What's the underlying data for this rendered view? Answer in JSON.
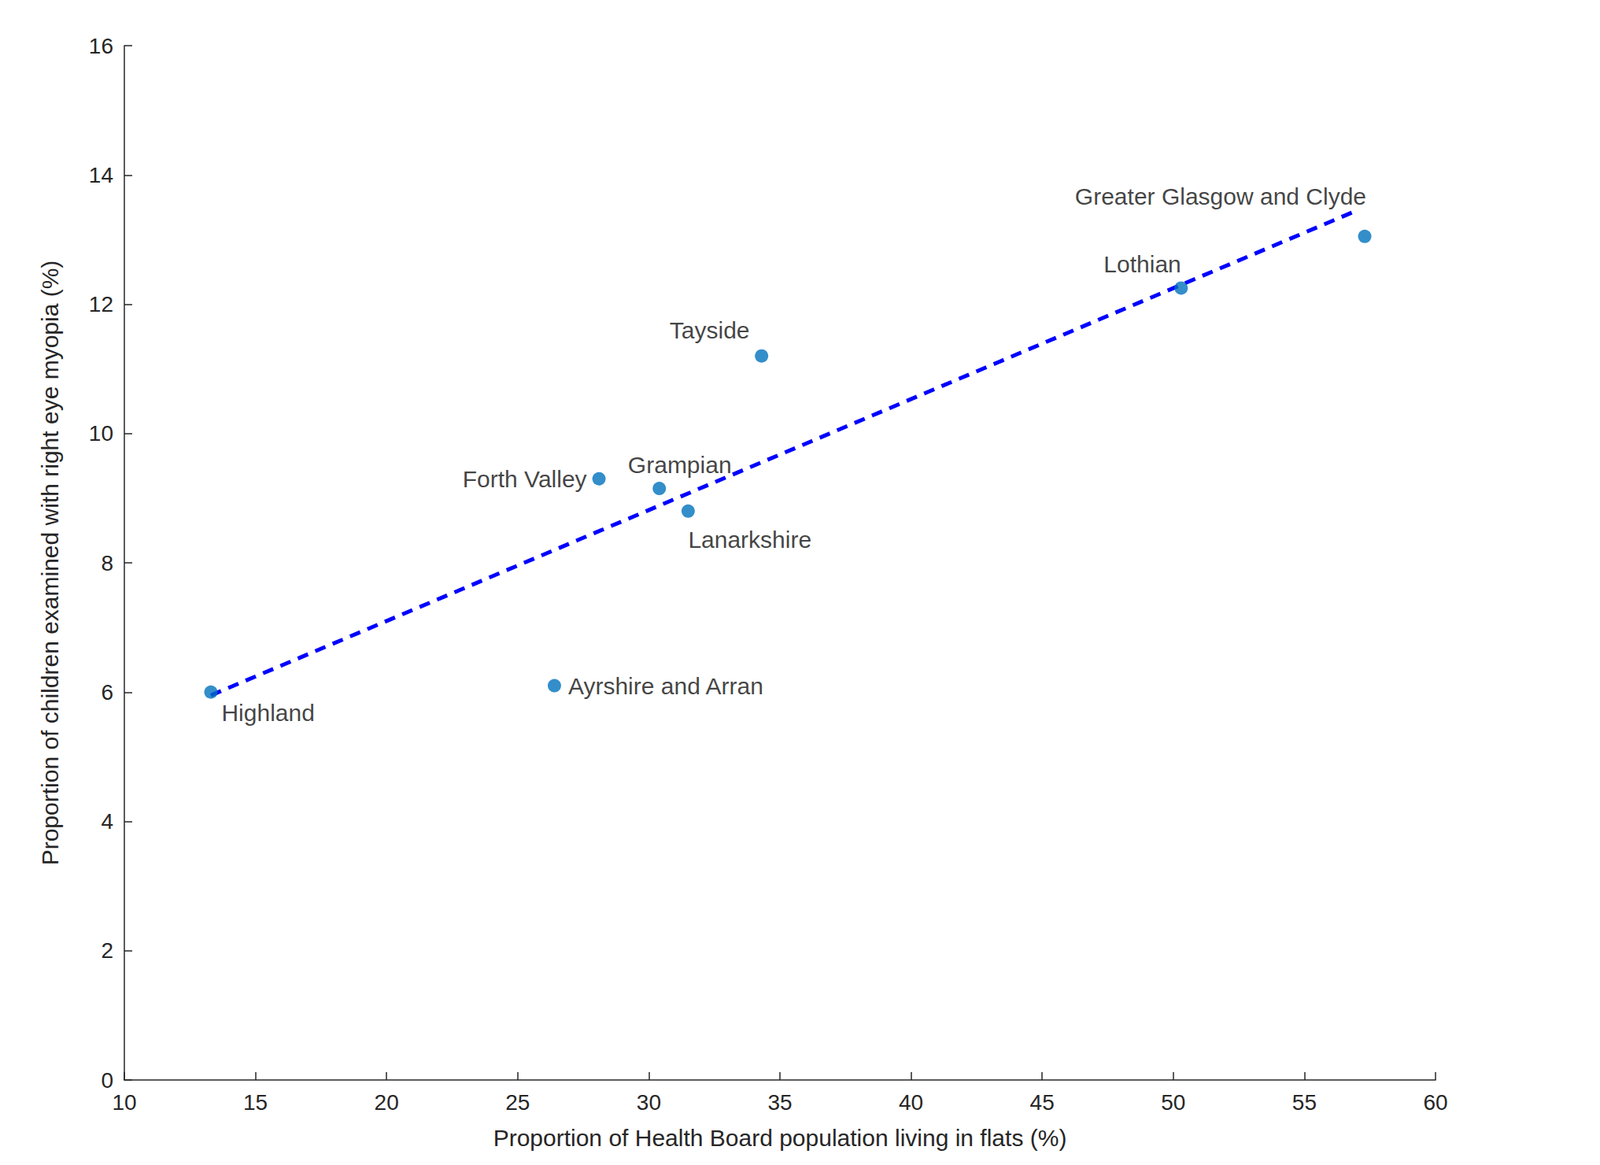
{
  "chart_data": {
    "type": "scatter",
    "xlabel": "Proportion of Health Board population living in flats (%)",
    "ylabel": "Proportion of children examined with right eye myopia (%)",
    "labels": [
      "Highland",
      "Ayrshire and Arran",
      "Forth Valley",
      "Grampian",
      "Lanarkshire",
      "Tayside",
      "Lothian",
      "Greater Glasgow and Clyde"
    ],
    "x": [
      13.3,
      26.4,
      28.1,
      30.4,
      31.5,
      34.3,
      50.3,
      57.3
    ],
    "values": [
      6.0,
      6.1,
      9.3,
      9.15,
      8.8,
      11.2,
      12.25,
      13.05
    ],
    "color": "#0072bd",
    "marker": "circle",
    "trend_line": {
      "x": [
        13.3,
        57.0
      ],
      "values": [
        5.95,
        13.45
      ],
      "color": "#0000ff",
      "line_style": "dashed"
    },
    "xlim": [
      10,
      60
    ],
    "ylim": [
      0,
      16
    ],
    "xticks": [
      10,
      15,
      20,
      25,
      30,
      35,
      40,
      45,
      50,
      55,
      60
    ],
    "yticks": [
      0,
      2,
      4,
      6,
      8,
      10,
      12,
      14,
      16
    ],
    "grid": false
  }
}
